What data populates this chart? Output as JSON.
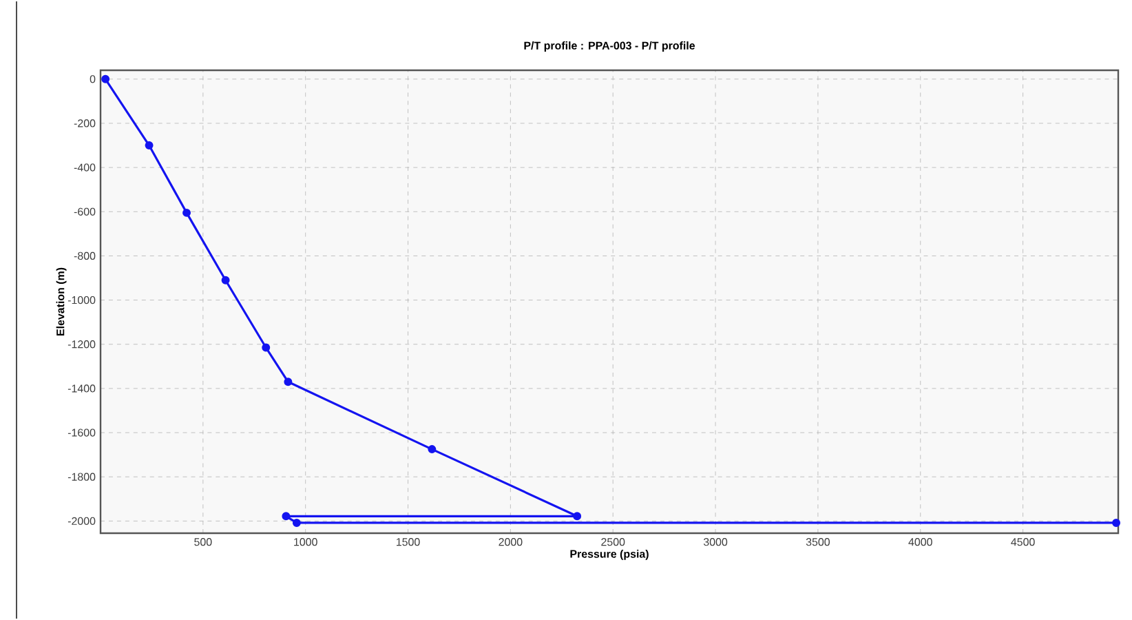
{
  "chart_data": {
    "type": "line",
    "title": "P/T profile : PPA-003 - P/T profile",
    "xlabel": "Pressure (psia)",
    "ylabel": "Elevation (m)",
    "xlim": [
      0,
      4965
    ],
    "ylim": [
      -2055,
      40
    ],
    "xticks": [
      500,
      1000,
      1500,
      2000,
      2500,
      3000,
      3500,
      4000,
      4500
    ],
    "yticks": [
      0,
      -200,
      -400,
      -600,
      -800,
      -1000,
      -1200,
      -1400,
      -1600,
      -1800,
      -2000
    ],
    "grid": true,
    "marker": "circle",
    "line_style": "solid",
    "series": [
      {
        "color": "#1414f0",
        "x": [
          24,
          237,
          420,
          610,
          807,
          915,
          1617,
          2325,
          905,
          957,
          4955
        ],
        "values": [
          0,
          -300,
          -605,
          -910,
          -1215,
          -1370,
          -1675,
          -1978,
          -1978,
          -2008,
          -2008
        ]
      }
    ]
  }
}
